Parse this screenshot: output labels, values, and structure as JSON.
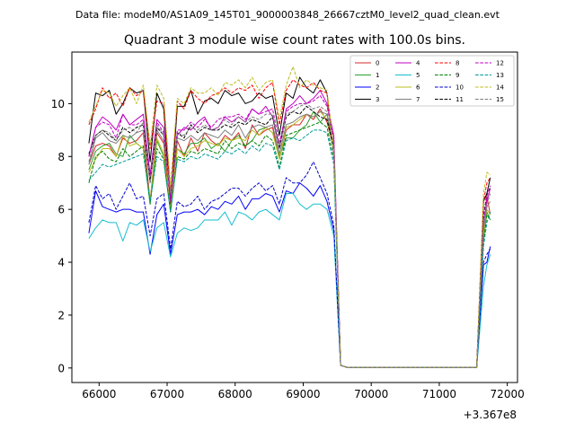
{
  "figure": {
    "suptitle": "Data file: modeM0/AS1A09_145T01_9000003848_26667cztM0_level2_quad_clean.evt"
  },
  "chart_data": {
    "type": "line",
    "title": "Quadrant 3 module wise count rates with 100.0s bins.",
    "xlabel": "",
    "ylabel": "",
    "x_offset_label": "+3.367e8",
    "xlim": [
      65600,
      72150
    ],
    "ylim": [
      -0.55,
      11.95
    ],
    "x_ticks": [
      66000,
      67000,
      68000,
      69000,
      70000,
      71000,
      72000
    ],
    "x_tick_labels": [
      "66000",
      "67000",
      "68000",
      "69000",
      "70000",
      "71000",
      "72000"
    ],
    "y_ticks": [
      0,
      2,
      4,
      6,
      8,
      10
    ],
    "y_tick_labels": [
      "0",
      "2",
      "4",
      "6",
      "8",
      "10"
    ],
    "grid": false,
    "legend_position": "top-right",
    "legend_columns": 4,
    "x": [
      65850,
      65950,
      66050,
      66150,
      66250,
      66350,
      66450,
      66550,
      66650,
      66750,
      66850,
      66950,
      67050,
      67150,
      67250,
      67350,
      67450,
      67550,
      67650,
      67750,
      67850,
      67950,
      68050,
      68150,
      68250,
      68350,
      68450,
      68550,
      68650,
      68750,
      68850,
      68950,
      69050,
      69150,
      69250,
      69350,
      69450,
      69550,
      69650,
      69750,
      69850,
      69950,
      70050,
      70150,
      70250,
      70350,
      70450,
      70550,
      70650,
      70750,
      70850,
      70950,
      71050,
      71150,
      71250,
      71350,
      71450,
      71550,
      71650,
      71700,
      71750
    ],
    "series": [
      {
        "name": "0",
        "color": "#d62728",
        "dash": false,
        "values": [
          7.7,
          8.4,
          8.5,
          8.4,
          8.0,
          8.7,
          8.5,
          8.6,
          8.9,
          6.3,
          8.9,
          8.5,
          5.9,
          8.6,
          8.0,
          8.7,
          8.2,
          8.9,
          8.6,
          8.4,
          8.8,
          8.6,
          8.9,
          8.3,
          9.2,
          8.8,
          9.0,
          9.1,
          7.9,
          9.0,
          9.2,
          9.2,
          9.6,
          9.4,
          9.8,
          9.3,
          8.3,
          0.1,
          0.02,
          0.02,
          0.02,
          0.02,
          0.02,
          0.02,
          0.02,
          0.02,
          0.02,
          0.02,
          0.02,
          0.02,
          0.02,
          0.02,
          0.02,
          0.02,
          0.02,
          0.02,
          0.02,
          0.02,
          4.9,
          6.5,
          5.8
        ]
      },
      {
        "name": "1",
        "color": "#2ca02c",
        "dash": false,
        "values": [
          7.5,
          8.2,
          8.4,
          8.5,
          8.1,
          8.0,
          8.8,
          8.5,
          8.3,
          6.2,
          8.6,
          8.0,
          6.0,
          8.3,
          8.1,
          8.5,
          8.5,
          8.7,
          8.3,
          8.5,
          8.2,
          8.6,
          8.8,
          8.4,
          8.6,
          9.0,
          9.1,
          8.9,
          8.0,
          8.7,
          8.7,
          9.0,
          9.2,
          9.7,
          9.3,
          9.6,
          8.2,
          0.1,
          0.02,
          0.02,
          0.02,
          0.02,
          0.02,
          0.02,
          0.02,
          0.02,
          0.02,
          0.02,
          0.02,
          0.02,
          0.02,
          0.02,
          0.02,
          0.02,
          0.02,
          0.02,
          0.02,
          0.02,
          4.8,
          5.9,
          5.6
        ]
      },
      {
        "name": "2",
        "color": "#0000ff",
        "dash": false,
        "values": [
          5.1,
          6.7,
          6.1,
          6.0,
          5.9,
          6.0,
          6.0,
          5.9,
          5.9,
          4.3,
          5.8,
          6.2,
          4.3,
          5.8,
          5.9,
          5.9,
          6.0,
          5.8,
          6.1,
          6.0,
          6.3,
          6.2,
          6.5,
          6.0,
          6.4,
          6.4,
          6.6,
          6.5,
          5.9,
          6.7,
          6.6,
          7.0,
          6.8,
          6.5,
          6.9,
          6.3,
          5.2,
          0.1,
          0.02,
          0.02,
          0.02,
          0.02,
          0.02,
          0.02,
          0.02,
          0.02,
          0.02,
          0.02,
          0.02,
          0.02,
          0.02,
          0.02,
          0.02,
          0.02,
          0.02,
          0.02,
          0.02,
          0.02,
          3.9,
          4.0,
          4.6
        ]
      },
      {
        "name": "3",
        "color": "#000000",
        "dash": false,
        "values": [
          8.5,
          10.4,
          10.3,
          10.5,
          9.6,
          10.0,
          10.6,
          10.4,
          10.5,
          7.8,
          10.4,
          9.8,
          6.2,
          9.9,
          9.9,
          10.5,
          9.6,
          10.1,
          10.2,
          10.0,
          10.5,
          10.3,
          10.4,
          10.0,
          10.1,
          10.4,
          10.2,
          10.3,
          8.8,
          10.4,
          10.2,
          11.0,
          10.6,
          10.4,
          10.9,
          10.4,
          8.1,
          0.1,
          0.02,
          0.02,
          0.02,
          0.02,
          0.02,
          0.02,
          0.02,
          0.02,
          0.02,
          0.02,
          0.02,
          0.02,
          0.02,
          0.02,
          0.02,
          0.02,
          0.02,
          0.02,
          0.02,
          0.02,
          6.3,
          6.6,
          7.2
        ]
      },
      {
        "name": "4",
        "color": "#c000c0",
        "dash": false,
        "values": [
          8.0,
          9.1,
          9.5,
          9.3,
          9.0,
          9.6,
          9.2,
          9.4,
          9.6,
          7.3,
          9.4,
          9.1,
          6.3,
          8.8,
          9.1,
          9.0,
          9.3,
          9.5,
          9.0,
          9.1,
          9.5,
          9.3,
          9.5,
          9.3,
          9.8,
          9.6,
          9.9,
          9.5,
          8.3,
          9.8,
          10.0,
          10.3,
          10.0,
          10.2,
          10.5,
          10.0,
          8.8,
          0.1,
          0.02,
          0.02,
          0.02,
          0.02,
          0.02,
          0.02,
          0.02,
          0.02,
          0.02,
          0.02,
          0.02,
          0.02,
          0.02,
          0.02,
          0.02,
          0.02,
          0.02,
          0.02,
          0.02,
          0.02,
          5.4,
          6.3,
          6.8
        ]
      },
      {
        "name": "5",
        "color": "#17becf",
        "dash": false,
        "values": [
          4.9,
          5.3,
          5.6,
          5.5,
          5.5,
          4.8,
          5.5,
          5.4,
          5.6,
          4.4,
          5.3,
          5.5,
          4.2,
          5.1,
          5.3,
          5.2,
          5.3,
          5.6,
          5.6,
          5.6,
          5.9,
          5.4,
          5.9,
          5.8,
          5.6,
          5.9,
          6.0,
          5.8,
          5.6,
          6.6,
          6.6,
          6.2,
          6.0,
          6.2,
          6.2,
          6.0,
          5.0,
          0.1,
          0.02,
          0.02,
          0.02,
          0.02,
          0.02,
          0.02,
          0.02,
          0.02,
          0.02,
          0.02,
          0.02,
          0.02,
          0.02,
          0.02,
          0.02,
          0.02,
          0.02,
          0.02,
          0.02,
          0.02,
          3.1,
          3.9,
          4.3
        ]
      },
      {
        "name": "6",
        "color": "#bcbd22",
        "dash": false,
        "values": [
          7.4,
          7.9,
          8.3,
          8.3,
          8.0,
          8.8,
          8.4,
          8.5,
          8.3,
          6.3,
          8.7,
          8.1,
          6.0,
          8.3,
          8.0,
          8.3,
          8.4,
          8.6,
          8.5,
          8.4,
          8.7,
          8.6,
          8.7,
          8.6,
          9.0,
          8.8,
          9.1,
          8.9,
          7.9,
          9.1,
          9.2,
          9.4,
          9.6,
          9.5,
          9.7,
          9.4,
          8.3,
          0.1,
          0.02,
          0.02,
          0.02,
          0.02,
          0.02,
          0.02,
          0.02,
          0.02,
          0.02,
          0.02,
          0.02,
          0.02,
          0.02,
          0.02,
          0.02,
          0.02,
          0.02,
          0.02,
          0.02,
          0.02,
          5.0,
          6.0,
          5.8
        ]
      },
      {
        "name": "7",
        "color": "#7f7f7f",
        "dash": false,
        "values": [
          7.7,
          8.7,
          8.9,
          8.6,
          8.5,
          8.8,
          8.7,
          8.9,
          9.0,
          7.0,
          9.0,
          8.6,
          6.6,
          8.7,
          8.6,
          8.8,
          8.6,
          8.9,
          8.8,
          8.7,
          9.0,
          8.8,
          9.2,
          8.7,
          9.1,
          9.2,
          9.1,
          9.2,
          8.1,
          9.2,
          9.3,
          9.5,
          9.6,
          9.5,
          9.7,
          9.6,
          8.4,
          0.1,
          0.02,
          0.02,
          0.02,
          0.02,
          0.02,
          0.02,
          0.02,
          0.02,
          0.02,
          0.02,
          0.02,
          0.02,
          0.02,
          0.02,
          0.02,
          0.02,
          0.02,
          0.02,
          0.02,
          0.02,
          5.2,
          6.1,
          6.3
        ]
      },
      {
        "name": "8",
        "color": "#ff0000",
        "dash": true,
        "values": [
          9.2,
          9.8,
          10.6,
          10.2,
          10.4,
          9.9,
          10.6,
          10.3,
          10.5,
          8.3,
          10.1,
          10.0,
          6.6,
          10.1,
          9.8,
          10.5,
          10.2,
          10.0,
          10.3,
          10.4,
          10.6,
          10.4,
          10.6,
          10.5,
          10.7,
          10.2,
          10.6,
          10.8,
          9.2,
          10.5,
          10.9,
          10.7,
          10.6,
          10.8,
          10.5,
          10.4,
          8.3,
          0.1,
          0.02,
          0.02,
          0.02,
          0.02,
          0.02,
          0.02,
          0.02,
          0.02,
          0.02,
          0.02,
          0.02,
          0.02,
          0.02,
          0.02,
          0.02,
          0.02,
          0.02,
          0.02,
          0.02,
          0.02,
          6.3,
          7.0,
          7.2
        ]
      },
      {
        "name": "9",
        "color": "#008000",
        "dash": true,
        "values": [
          7.0,
          8.0,
          8.2,
          7.9,
          7.8,
          8.3,
          8.0,
          8.2,
          8.4,
          6.2,
          8.3,
          7.9,
          5.9,
          8.0,
          7.9,
          8.2,
          8.1,
          8.3,
          8.2,
          8.1,
          8.6,
          8.3,
          8.5,
          8.4,
          8.6,
          8.4,
          8.8,
          8.6,
          7.6,
          8.8,
          8.9,
          9.0,
          9.1,
          9.2,
          9.3,
          9.1,
          7.9,
          0.1,
          0.02,
          0.02,
          0.02,
          0.02,
          0.02,
          0.02,
          0.02,
          0.02,
          0.02,
          0.02,
          0.02,
          0.02,
          0.02,
          0.02,
          0.02,
          0.02,
          0.02,
          0.02,
          0.02,
          0.02,
          4.7,
          5.8,
          5.6
        ]
      },
      {
        "name": "10",
        "color": "#0000cc",
        "dash": true,
        "values": [
          5.5,
          6.9,
          6.4,
          6.6,
          6.0,
          6.5,
          7.0,
          6.4,
          6.5,
          5.0,
          6.4,
          6.6,
          4.5,
          6.3,
          6.1,
          6.2,
          6.5,
          6.0,
          6.3,
          6.4,
          6.6,
          6.8,
          6.8,
          6.5,
          6.8,
          7.0,
          6.7,
          6.9,
          6.2,
          7.2,
          7.0,
          7.0,
          7.3,
          7.8,
          7.2,
          6.6,
          5.4,
          0.1,
          0.02,
          0.02,
          0.02,
          0.02,
          0.02,
          0.02,
          0.02,
          0.02,
          0.02,
          0.02,
          0.02,
          0.02,
          0.02,
          0.02,
          0.02,
          0.02,
          0.02,
          0.02,
          0.02,
          0.02,
          4.0,
          4.3,
          4.5
        ]
      },
      {
        "name": "11",
        "color": "#000000",
        "dash": true,
        "values": [
          8.1,
          8.8,
          9.0,
          8.8,
          8.6,
          9.1,
          8.9,
          9.1,
          9.2,
          7.1,
          9.1,
          8.8,
          6.4,
          8.9,
          8.7,
          9.2,
          8.9,
          9.1,
          9.0,
          9.0,
          9.2,
          9.1,
          9.3,
          9.2,
          9.4,
          9.3,
          9.2,
          9.5,
          8.3,
          9.5,
          9.7,
          9.6,
          9.9,
          9.7,
          9.5,
          9.4,
          8.3,
          0.1,
          0.02,
          0.02,
          0.02,
          0.02,
          0.02,
          0.02,
          0.02,
          0.02,
          0.02,
          0.02,
          0.02,
          0.02,
          0.02,
          0.02,
          0.02,
          0.02,
          0.02,
          0.02,
          0.02,
          0.02,
          5.7,
          6.6,
          6.8
        ]
      },
      {
        "name": "12",
        "color": "#c000c0",
        "dash": true,
        "values": [
          8.0,
          9.1,
          9.3,
          9.2,
          8.7,
          9.6,
          9.2,
          9.2,
          9.4,
          7.3,
          9.3,
          8.9,
          6.4,
          9.0,
          9.0,
          9.3,
          9.1,
          9.4,
          9.1,
          9.4,
          9.5,
          9.5,
          9.6,
          9.4,
          9.8,
          9.6,
          9.7,
          9.8,
          8.5,
          9.7,
          9.9,
          10.0,
          10.0,
          10.1,
          10.3,
          9.9,
          8.7,
          0.1,
          0.02,
          0.02,
          0.02,
          0.02,
          0.02,
          0.02,
          0.02,
          0.02,
          0.02,
          0.02,
          0.02,
          0.02,
          0.02,
          0.02,
          0.02,
          0.02,
          0.02,
          0.02,
          0.02,
          0.02,
          5.6,
          6.5,
          6.9
        ]
      },
      {
        "name": "13",
        "color": "#009999",
        "dash": true,
        "values": [
          7.1,
          7.4,
          7.7,
          7.6,
          7.7,
          7.8,
          7.9,
          8.0,
          8.1,
          6.3,
          8.0,
          7.8,
          5.9,
          7.9,
          7.8,
          8.0,
          7.9,
          8.1,
          8.0,
          7.9,
          8.2,
          8.1,
          8.3,
          8.1,
          8.4,
          8.2,
          8.5,
          8.4,
          7.5,
          8.6,
          8.7,
          8.6,
          8.8,
          9.0,
          9.0,
          8.9,
          7.7,
          0.1,
          0.02,
          0.02,
          0.02,
          0.02,
          0.02,
          0.02,
          0.02,
          0.02,
          0.02,
          0.02,
          0.02,
          0.02,
          0.02,
          0.02,
          0.02,
          0.02,
          0.02,
          0.02,
          0.02,
          0.02,
          4.6,
          5.5,
          5.9
        ]
      },
      {
        "name": "14",
        "color": "#bcbd22",
        "dash": true,
        "values": [
          9.3,
          9.9,
          10.5,
          10.4,
          9.9,
          10.3,
          10.6,
          10.0,
          10.7,
          8.4,
          10.7,
          10.2,
          6.9,
          10.2,
          10.0,
          10.6,
          10.4,
          10.4,
          10.6,
          10.3,
          10.8,
          10.7,
          10.9,
          10.6,
          11.0,
          10.5,
          10.8,
          10.9,
          9.4,
          10.7,
          11.4,
          10.6,
          10.9,
          10.7,
          10.6,
          10.5,
          8.2,
          0.1,
          0.02,
          0.02,
          0.02,
          0.02,
          0.02,
          0.02,
          0.02,
          0.02,
          0.02,
          0.02,
          0.02,
          0.02,
          0.02,
          0.02,
          0.02,
          0.02,
          0.02,
          0.02,
          0.02,
          0.02,
          6.6,
          7.4,
          7.3
        ]
      },
      {
        "name": "15",
        "color": "#7f7f7f",
        "dash": true,
        "values": [
          7.8,
          8.8,
          9.0,
          8.9,
          8.6,
          9.0,
          9.1,
          8.9,
          9.3,
          7.0,
          9.2,
          8.8,
          6.6,
          8.9,
          8.8,
          9.1,
          9.0,
          9.2,
          9.0,
          9.1,
          9.4,
          9.2,
          9.5,
          9.3,
          9.5,
          9.4,
          9.6,
          9.6,
          8.3,
          9.6,
          9.7,
          9.9,
          10.0,
          9.8,
          9.9,
          9.7,
          8.4,
          0.1,
          0.02,
          0.02,
          0.02,
          0.02,
          0.02,
          0.02,
          0.02,
          0.02,
          0.02,
          0.02,
          0.02,
          0.02,
          0.02,
          0.02,
          0.02,
          0.02,
          0.02,
          0.02,
          0.02,
          0.02,
          5.5,
          6.2,
          6.6
        ]
      }
    ]
  }
}
